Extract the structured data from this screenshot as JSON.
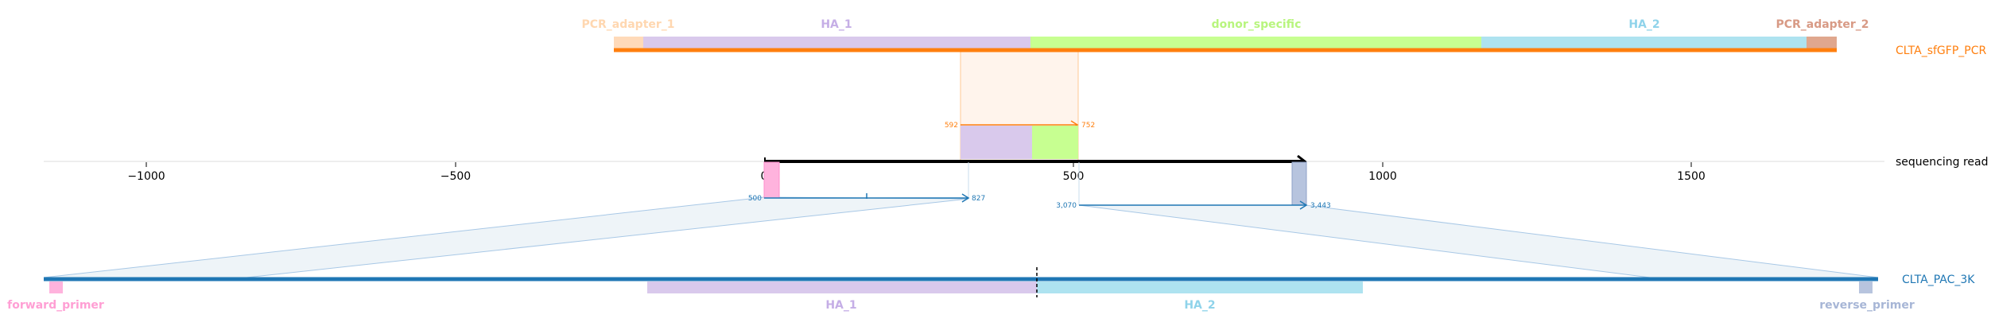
{
  "colors": {
    "pcr_orange": "#ff7f0e",
    "pac_blue": "#1f77b4",
    "pcr_adapter_1": "#ffdab9",
    "pcr_adapter_2": "#e0a78e",
    "ha_1": "#d9c9ec",
    "donor_specific": "#c7ff91",
    "ha_2": "#aee3f0",
    "forward_primer": "#ffb3dd",
    "reverse_primer": "#b7c4de",
    "pcr_alignment_fill": "#fff3ea",
    "pac_alignment_fill": "#eef4f8",
    "read": "#000000"
  },
  "top_sequence": {
    "name": "CLTA_sfGFP_PCR",
    "features": [
      {
        "label": "PCR_adapter_1",
        "label_color": "#ffd7b0"
      },
      {
        "label": "HA_1",
        "label_color": "#c5aee6"
      },
      {
        "label": "donor_specific",
        "label_color": "#b8f57e"
      },
      {
        "label": "HA_2",
        "label_color": "#8fd3ea"
      },
      {
        "label": "PCR_adapter_2",
        "label_color": "#d89a85"
      }
    ],
    "alignment": {
      "start_label": "592",
      "end_label": "752"
    }
  },
  "read": {
    "name": "sequencing read",
    "axis_ticks": [
      "−1000",
      "−500",
      "0",
      "500",
      "1000",
      "1500"
    ]
  },
  "bottom_sequence": {
    "name": "CLTA_PAC_3K",
    "features": [
      {
        "label": "forward_primer",
        "label_color": "#ff9fd4"
      },
      {
        "label": "HA_1",
        "label_color": "#c5aee6"
      },
      {
        "label": "HA_2",
        "label_color": "#8fd3ea"
      },
      {
        "label": "reverse_primer",
        "label_color": "#a7b6d6"
      }
    ],
    "alignment_left": {
      "start_label": "500",
      "end_label": "827"
    },
    "alignment_right": {
      "start_label": "3,070",
      "end_label": "3,443"
    }
  }
}
